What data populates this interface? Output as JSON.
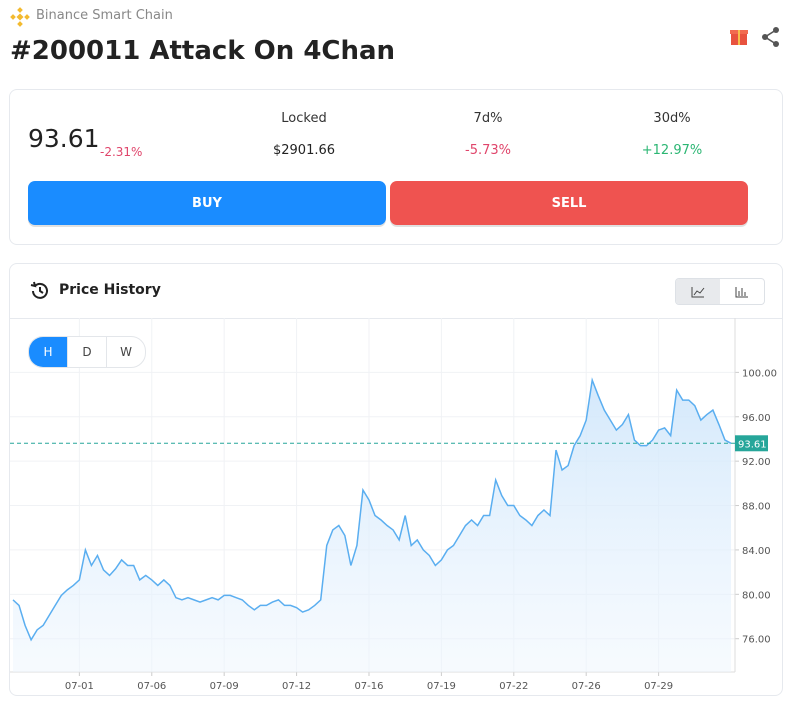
{
  "header": {
    "network": "Binance Smart Chain",
    "title": "#200011 Attack On 4Chan"
  },
  "stats": {
    "price": "93.61",
    "change": "-2.31%",
    "locked_label": "Locked",
    "locked": "$2901.66",
    "d7_label": "7d%",
    "d7": "-5.73%",
    "d30_label": "30d%",
    "d30": "+12.97%"
  },
  "buttons": {
    "buy": "BUY",
    "sell": "SELL"
  },
  "panel": {
    "title": "Price History",
    "intervals": [
      "H",
      "D",
      "W"
    ]
  },
  "chart_data": {
    "type": "line",
    "categories": [
      null,
      null,
      null,
      null,
      null,
      null,
      null,
      null,
      null,
      null,
      null,
      "07-01",
      null,
      null,
      null,
      null,
      null,
      null,
      null,
      null,
      null,
      null,
      null,
      "07-06",
      null,
      null,
      null,
      null,
      null,
      null,
      null,
      null,
      null,
      null,
      null,
      "07-09",
      null,
      null,
      null,
      null,
      null,
      null,
      null,
      null,
      null,
      null,
      null,
      "07-12",
      null,
      null,
      null,
      null,
      null,
      null,
      null,
      null,
      null,
      null,
      null,
      "07-16",
      null,
      null,
      null,
      null,
      null,
      null,
      null,
      null,
      null,
      null,
      null,
      "07-19",
      null,
      null,
      null,
      null,
      null,
      null,
      null,
      null,
      null,
      null,
      null,
      "07-22",
      null,
      null,
      null,
      null,
      null,
      null,
      null,
      null,
      null,
      null,
      null,
      "07-26",
      null,
      null,
      null,
      null,
      null,
      null,
      null,
      null,
      null,
      null,
      null,
      "07-29",
      null,
      null,
      null,
      null,
      null,
      null,
      null,
      null,
      null,
      null,
      null,
      null
    ],
    "series": [
      {
        "color": "#5aaef0",
        "values": [
          79.5,
          79.0,
          77.2,
          75.9,
          76.8,
          77.2,
          78.1,
          79.0,
          79.9,
          80.4,
          80.8,
          81.3,
          84.0,
          82.6,
          83.5,
          82.2,
          81.7,
          82.3,
          83.1,
          82.6,
          82.6,
          81.3,
          81.7,
          81.3,
          80.8,
          81.3,
          80.8,
          79.7,
          79.5,
          79.7,
          79.5,
          79.3,
          79.5,
          79.7,
          79.5,
          79.9,
          79.9,
          79.7,
          79.5,
          79.0,
          78.6,
          79.0,
          79.0,
          79.3,
          79.5,
          79.0,
          79.0,
          78.8,
          78.4,
          78.6,
          79.0,
          79.5,
          84.4,
          85.8,
          86.2,
          85.3,
          82.6,
          84.4,
          89.4,
          88.5,
          87.1,
          86.7,
          86.2,
          85.8,
          84.9,
          87.1,
          84.4,
          84.9,
          84.0,
          83.5,
          82.6,
          83.1,
          84.0,
          84.4,
          85.3,
          86.2,
          86.7,
          86.2,
          87.1,
          87.1,
          90.3,
          88.9,
          88.0,
          88.0,
          87.1,
          86.7,
          86.2,
          87.1,
          87.6,
          87.1,
          93.0,
          91.2,
          91.6,
          93.4,
          94.3,
          95.7,
          99.3,
          97.9,
          96.6,
          95.7,
          94.8,
          95.3,
          96.2,
          93.9,
          93.4,
          93.4,
          93.9,
          94.8,
          95.0,
          94.3,
          98.4,
          97.5,
          97.5,
          97.0,
          95.7,
          96.2,
          96.6,
          95.3,
          93.9,
          93.61
        ]
      }
    ],
    "ylim": [
      73.0,
      104.9
    ],
    "yticks": [
      {
        "value": 76,
        "label": "76.00"
      },
      {
        "value": 80,
        "label": "80.00"
      },
      {
        "value": 84,
        "label": "84.00"
      },
      {
        "value": 88,
        "label": "88.00"
      },
      {
        "value": 92,
        "label": "92.00"
      },
      {
        "value": 96,
        "label": "96.00"
      },
      {
        "value": 100,
        "label": "100.00"
      }
    ],
    "grid": true,
    "last_price_line": true,
    "last_price_color": "#26a69a"
  }
}
